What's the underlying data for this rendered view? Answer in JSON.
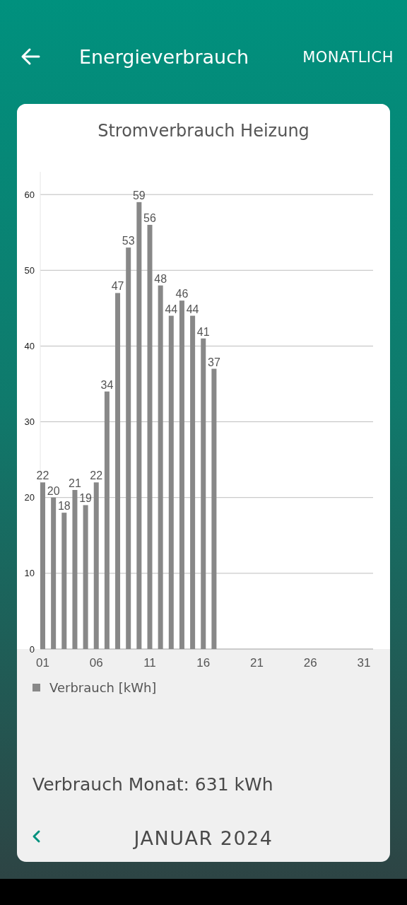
{
  "chart_data": {
    "type": "bar",
    "title": "Stromverbrauch Heizung",
    "annotations": [
      "Energieverbrauch",
      "MONATLICH",
      "Verbrauch Monat: 631 kWh",
      "JANUAR 2024"
    ],
    "categories": [
      "01",
      null,
      null,
      null,
      null,
      "06",
      null,
      null,
      null,
      null,
      "11",
      null,
      null,
      null,
      null,
      "16",
      null,
      null,
      null,
      null,
      "21",
      null,
      null,
      null,
      null,
      "26",
      null,
      null,
      null,
      null,
      "31"
    ],
    "series": [
      {
        "name": "Verbrauch [kWh]",
        "color": "#888888",
        "values": [
          22,
          20,
          18,
          21,
          19,
          22,
          34,
          47,
          53,
          59,
          56,
          48,
          44,
          46,
          44,
          41,
          37,
          null,
          null,
          null,
          null,
          null,
          null,
          null,
          null,
          null,
          null,
          null,
          null,
          null,
          null
        ]
      }
    ],
    "ylim": [
      0,
      63
    ],
    "yticks": [
      0,
      10,
      20,
      30,
      40,
      50,
      60
    ],
    "grid": "y",
    "legend": "bottom left",
    "data_labels": true
  }
}
